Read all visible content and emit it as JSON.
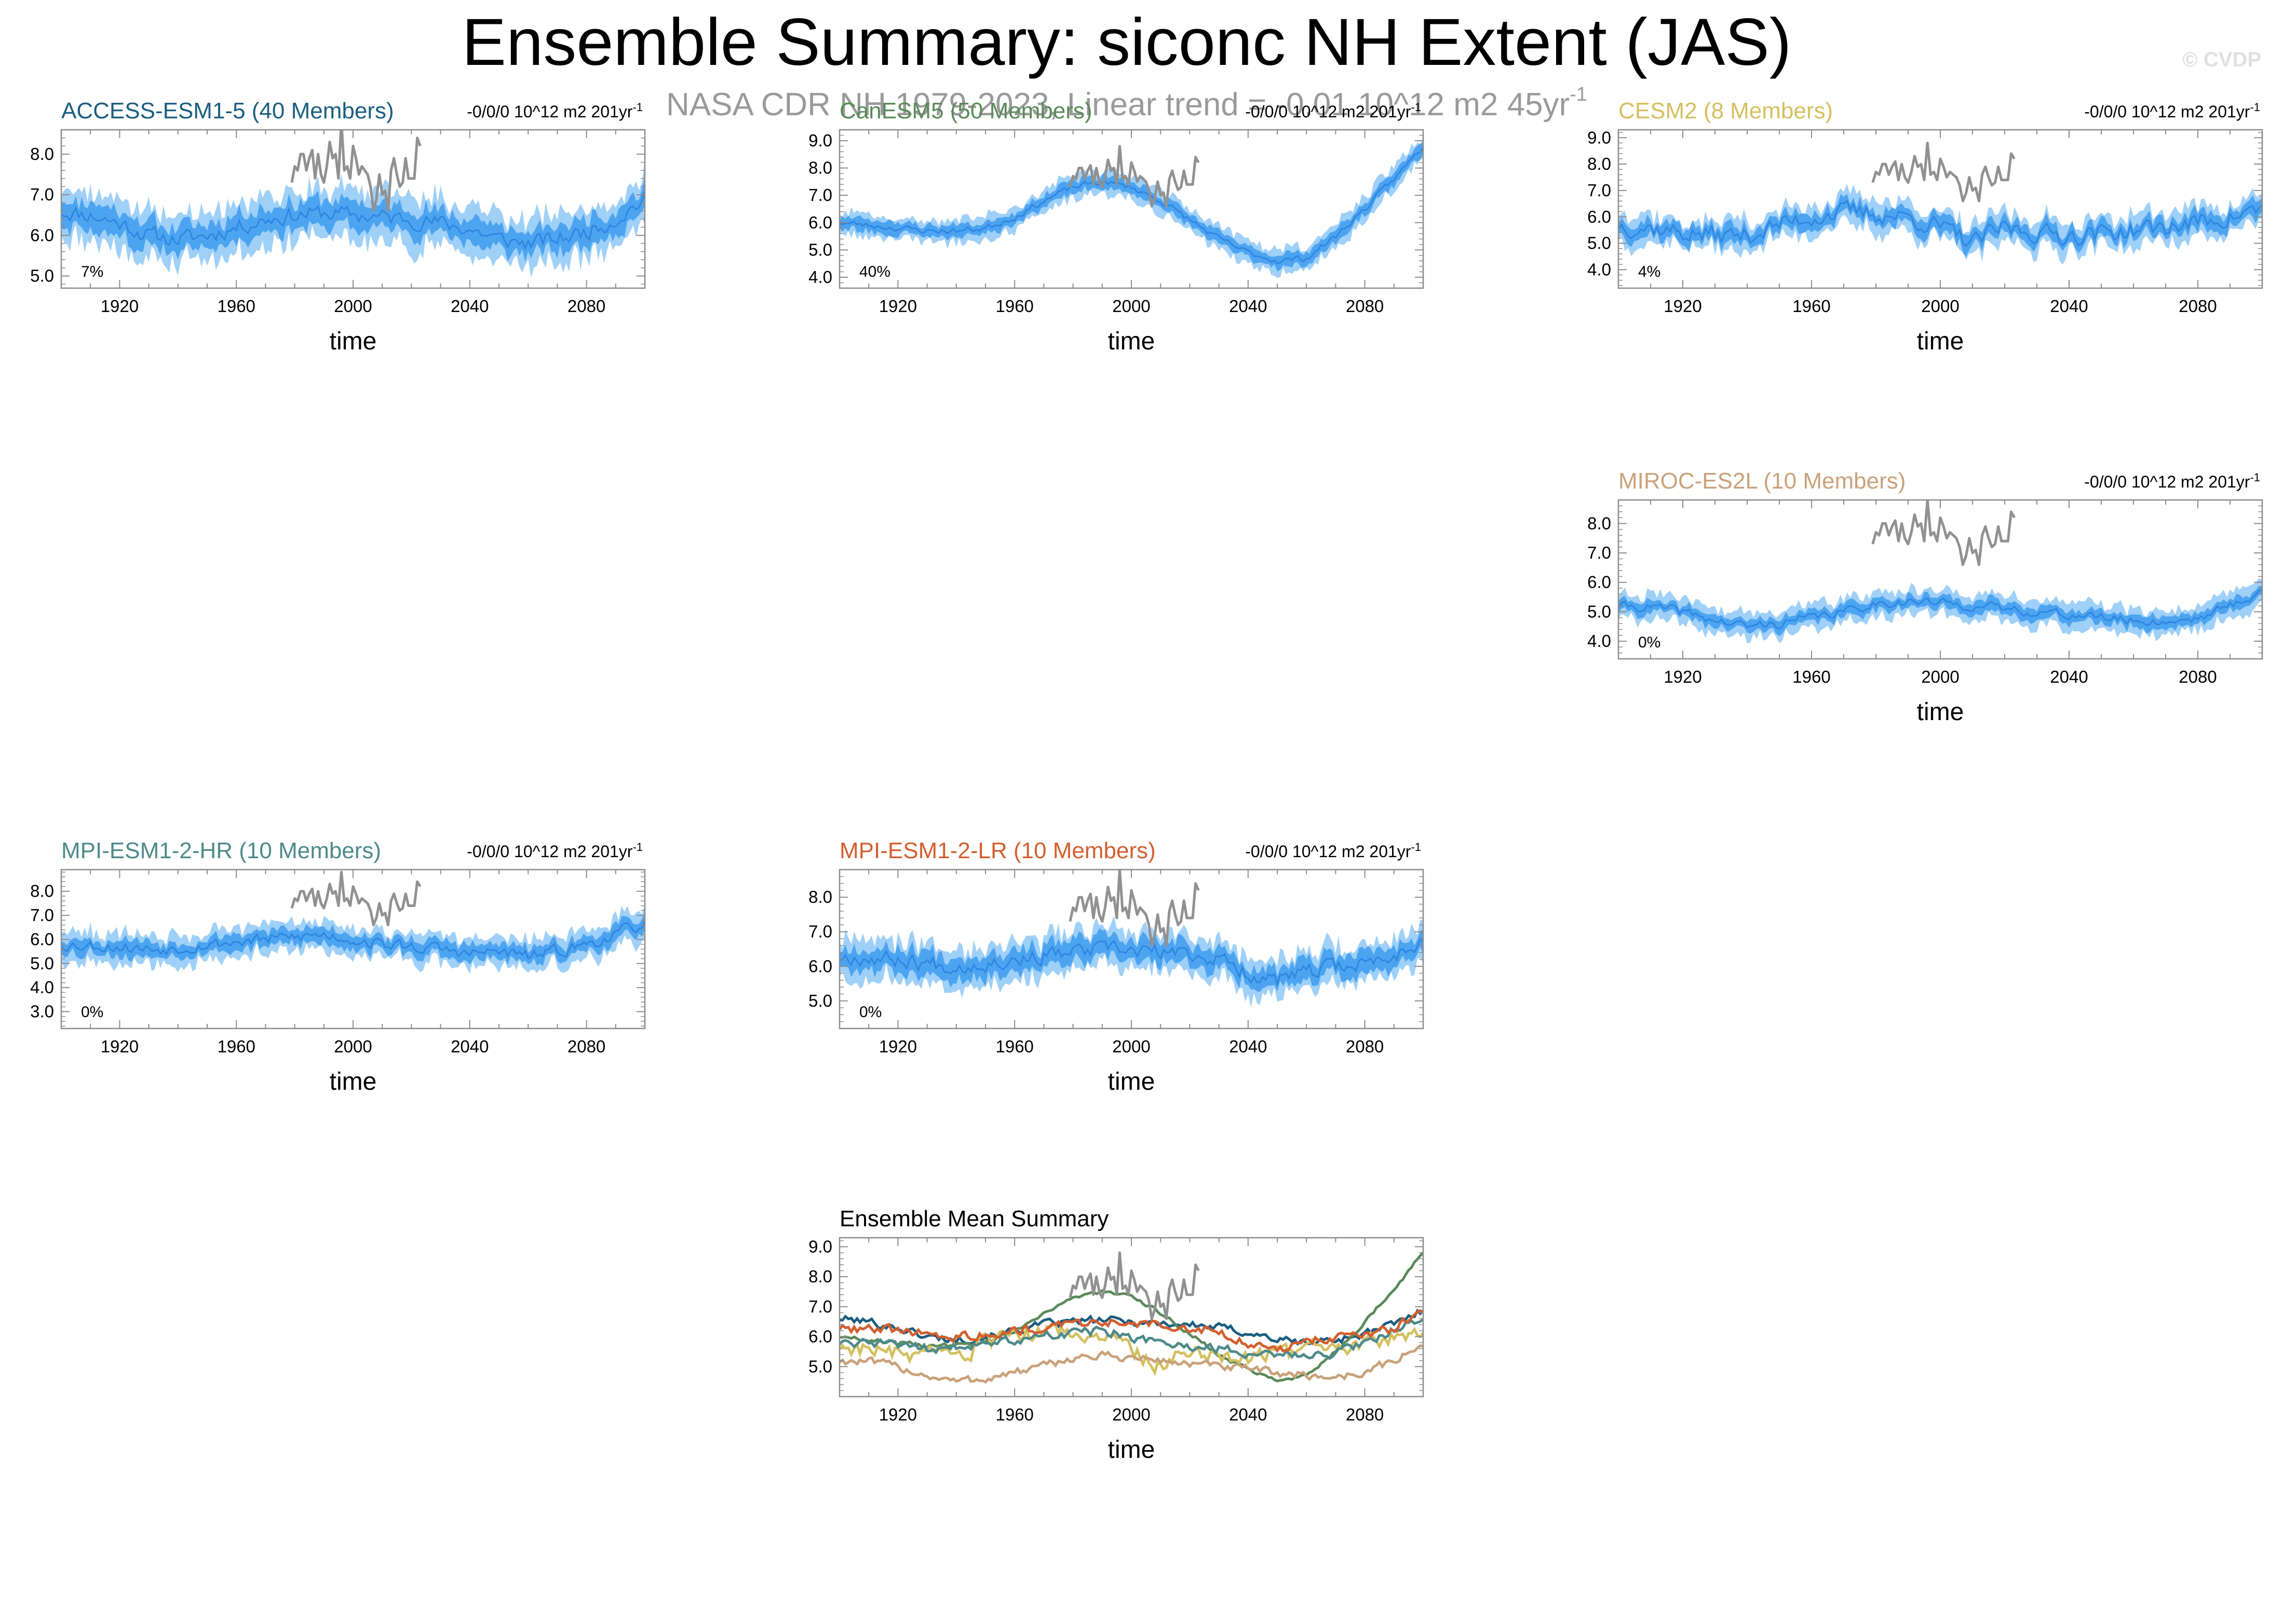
{
  "title": "Ensemble Summary: siconc NH Extent (JAS)",
  "subtitle": "NASA CDR NH 1979-2023, Linear trend = -0.01 10^12 m2 45yr",
  "subtitle_sup": "-1",
  "watermark": "© CVDP",
  "colors": {
    "band_outer": "#9fd0f8",
    "band_inner": "#3d9cf0",
    "mean_line": "#2f86e0",
    "obs": "#919191"
  },
  "chart_data": [
    {
      "type": "area",
      "id": "access",
      "title": "ACCESS-ESM1-5 (40 Members)",
      "title_color": "#1b5e80",
      "trend_text": "-0/0/0 10^12 m2 201yr",
      "trend_sup": "-1",
      "pct_label": "7%",
      "xlabel": "time",
      "xlim": [
        1900,
        2100
      ],
      "ylim": [
        4.7,
        8.6
      ],
      "yticks": [
        "5.0",
        "6.0",
        "7.0",
        "8.0"
      ],
      "xticks": [
        "1920",
        "1960",
        "2000",
        "2040",
        "2080"
      ],
      "mean_years": [
        1900,
        1910,
        1920,
        1930,
        1940,
        1950,
        1960,
        1970,
        1980,
        1990,
        2000,
        2010,
        2020,
        2030,
        2040,
        2050,
        2060,
        2070,
        2080,
        2090,
        2100
      ],
      "mean_values": [
        6.6,
        6.5,
        6.3,
        6.0,
        5.9,
        6.0,
        6.2,
        6.4,
        6.5,
        6.55,
        6.5,
        6.45,
        6.4,
        6.3,
        6.15,
        5.9,
        5.8,
        5.9,
        6.1,
        6.4,
        6.9
      ],
      "inner_halfwidth": 0.3,
      "outer_halfwidth": 0.6,
      "noise_amp": 0.18,
      "seed": 11
    },
    {
      "type": "area",
      "id": "canesm5",
      "title": "CanESM5 (50 Members)",
      "title_color": "#5a8a5a",
      "trend_text": "-0/0/0 10^12 m2 201yr",
      "trend_sup": "-1",
      "pct_label": "40%",
      "xlabel": "time",
      "xlim": [
        1900,
        2100
      ],
      "ylim": [
        3.6,
        9.4
      ],
      "yticks": [
        "4.0",
        "5.0",
        "6.0",
        "7.0",
        "8.0",
        "9.0"
      ],
      "xticks": [
        "1920",
        "1960",
        "2000",
        "2040",
        "2080"
      ],
      "mean_years": [
        1900,
        1910,
        1920,
        1930,
        1940,
        1950,
        1960,
        1970,
        1980,
        1990,
        2000,
        2010,
        2020,
        2030,
        2040,
        2050,
        2060,
        2070,
        2080,
        2090,
        2100
      ],
      "mean_values": [
        6.0,
        5.9,
        5.8,
        5.7,
        5.7,
        5.8,
        6.2,
        6.8,
        7.3,
        7.5,
        7.3,
        6.8,
        6.1,
        5.4,
        4.9,
        4.6,
        4.7,
        5.5,
        6.5,
        7.6,
        8.8
      ],
      "inner_halfwidth": 0.22,
      "outer_halfwidth": 0.42,
      "noise_amp": 0.1,
      "seed": 23
    },
    {
      "type": "area",
      "id": "cesm2",
      "title": "CESM2 (8 Members)",
      "title_color": "#d4c060",
      "trend_text": "-0/0/0 10^12 m2 201yr",
      "trend_sup": "-1",
      "pct_label": "4%",
      "xlabel": "time",
      "xlim": [
        1900,
        2100
      ],
      "ylim": [
        3.3,
        9.3
      ],
      "yticks": [
        "4.0",
        "5.0",
        "6.0",
        "7.0",
        "8.0",
        "9.0"
      ],
      "xticks": [
        "1920",
        "1960",
        "2000",
        "2040",
        "2080"
      ],
      "mean_years": [
        1900,
        1910,
        1920,
        1930,
        1940,
        1950,
        1960,
        1970,
        1980,
        1990,
        2000,
        2010,
        2020,
        2030,
        2040,
        2050,
        2060,
        2070,
        2080,
        2090,
        2100
      ],
      "mean_values": [
        5.7,
        5.6,
        5.4,
        5.3,
        5.3,
        5.7,
        6.0,
        6.2,
        6.1,
        6.0,
        5.6,
        5.0,
        5.6,
        5.4,
        5.3,
        5.4,
        5.5,
        5.6,
        5.8,
        6.0,
        6.3
      ],
      "inner_halfwidth": 0.3,
      "outer_halfwidth": 0.55,
      "noise_amp": 0.32,
      "seed": 37
    },
    {
      "type": "area",
      "id": "miroc",
      "title": "MIROC-ES2L (10 Members)",
      "title_color": "#c9a27a",
      "trend_text": "-0/0/0 10^12 m2 201yr",
      "trend_sup": "-1",
      "pct_label": "0%",
      "xlabel": "time",
      "xlim": [
        1900,
        2100
      ],
      "ylim": [
        3.4,
        8.8
      ],
      "yticks": [
        "4.0",
        "5.0",
        "6.0",
        "7.0",
        "8.0"
      ],
      "xticks": [
        "1920",
        "1960",
        "2000",
        "2040",
        "2080"
      ],
      "mean_years": [
        1900,
        1910,
        1920,
        1930,
        1940,
        1950,
        1960,
        1970,
        1980,
        1990,
        2000,
        2010,
        2020,
        2030,
        2040,
        2050,
        2060,
        2070,
        2080,
        2090,
        2100
      ],
      "mean_values": [
        5.2,
        5.15,
        5.0,
        4.7,
        4.5,
        4.6,
        4.8,
        5.0,
        5.3,
        5.35,
        5.3,
        5.2,
        5.1,
        5.0,
        4.9,
        4.8,
        4.7,
        4.65,
        4.8,
        5.2,
        5.7
      ],
      "inner_halfwidth": 0.2,
      "outer_halfwidth": 0.42,
      "noise_amp": 0.14,
      "seed": 41
    },
    {
      "type": "area",
      "id": "mpihr",
      "title": "MPI-ESM1-2-HR (10 Members)",
      "title_color": "#4e8a8a",
      "trend_text": "-0/0/0 10^12 m2 201yr",
      "trend_sup": "-1",
      "pct_label": "0%",
      "xlabel": "time",
      "xlim": [
        1900,
        2100
      ],
      "ylim": [
        2.3,
        8.9
      ],
      "yticks": [
        "3.0",
        "4.0",
        "5.0",
        "6.0",
        "7.0",
        "8.0"
      ],
      "xticks": [
        "1920",
        "1960",
        "2000",
        "2040",
        "2080"
      ],
      "mean_years": [
        1900,
        1910,
        1920,
        1930,
        1940,
        1950,
        1960,
        1970,
        1980,
        1990,
        2000,
        2010,
        2020,
        2030,
        2040,
        2050,
        2060,
        2070,
        2080,
        2090,
        2100
      ],
      "mean_values": [
        5.8,
        5.75,
        5.7,
        5.6,
        5.65,
        5.8,
        5.9,
        6.0,
        6.1,
        6.2,
        6.0,
        5.8,
        5.7,
        5.6,
        5.4,
        5.5,
        5.3,
        5.5,
        5.8,
        6.2,
        6.7
      ],
      "inner_halfwidth": 0.3,
      "outer_halfwidth": 0.6,
      "noise_amp": 0.22,
      "seed": 53
    },
    {
      "type": "area",
      "id": "mpilr",
      "title": "MPI-ESM1-2-LR (10 Members)",
      "title_color": "#d35f2f",
      "trend_text": "-0/0/0 10^12 m2 201yr",
      "trend_sup": "-1",
      "pct_label": "0%",
      "xlabel": "time",
      "xlim": [
        1900,
        2100
      ],
      "ylim": [
        4.2,
        8.8
      ],
      "yticks": [
        "5.0",
        "6.0",
        "7.0",
        "8.0"
      ],
      "xticks": [
        "1920",
        "1960",
        "2000",
        "2040",
        "2080"
      ],
      "mean_years": [
        1900,
        1910,
        1920,
        1930,
        1940,
        1950,
        1960,
        1970,
        1980,
        1990,
        2000,
        2010,
        2020,
        2030,
        2040,
        2050,
        2060,
        2070,
        2080,
        2090,
        2100
      ],
      "mean_values": [
        6.3,
        6.25,
        6.2,
        6.1,
        6.0,
        6.1,
        6.2,
        6.3,
        6.4,
        6.5,
        6.45,
        6.4,
        6.35,
        6.2,
        5.8,
        5.6,
        5.8,
        6.0,
        6.1,
        6.3,
        6.8
      ],
      "inner_halfwidth": 0.3,
      "outer_halfwidth": 0.55,
      "noise_amp": 0.2,
      "seed": 67
    },
    {
      "type": "line",
      "id": "summary",
      "title": "Ensemble Mean Summary",
      "title_color": "#000000",
      "xlabel": "time",
      "xlim": [
        1900,
        2100
      ],
      "ylim": [
        4.0,
        9.3
      ],
      "yticks": [
        "5.0",
        "6.0",
        "7.0",
        "8.0",
        "9.0"
      ],
      "xticks": [
        "1920",
        "1960",
        "2000",
        "2040",
        "2080"
      ],
      "series": [
        {
          "name": "ACCESS-ESM1-5",
          "color": "#1b5e80",
          "ref": "access",
          "noise": 0.12,
          "seed": 101
        },
        {
          "name": "CanESM5",
          "color": "#5a8a5a",
          "ref": "canesm5",
          "noise": 0.06,
          "seed": 102
        },
        {
          "name": "CESM2",
          "color": "#d4c060",
          "ref": "cesm2",
          "noise": 0.25,
          "seed": 103
        },
        {
          "name": "MIROC-ES2L",
          "color": "#c9a27a",
          "ref": "miroc",
          "noise": 0.12,
          "seed": 104
        },
        {
          "name": "MPI-ESM1-2-HR",
          "color": "#4e8a8a",
          "ref": "mpihr",
          "noise": 0.14,
          "seed": 105
        },
        {
          "name": "MPI-ESM1-2-LR",
          "color": "#d35f2f",
          "ref": "mpilr",
          "noise": 0.14,
          "seed": 106
        }
      ]
    }
  ],
  "observations": {
    "name": "NASA CDR NH 1979-2023",
    "years": [
      1979,
      1980,
      1981,
      1982,
      1983,
      1984,
      1985,
      1986,
      1987,
      1988,
      1989,
      1990,
      1991,
      1992,
      1993,
      1994,
      1995,
      1996,
      1997,
      1998,
      1999,
      2000,
      2001,
      2002,
      2003,
      2004,
      2005,
      2006,
      2007,
      2008,
      2009,
      2010,
      2011,
      2012,
      2013,
      2014,
      2015,
      2016,
      2017,
      2018,
      2019,
      2020,
      2021,
      2022,
      2023
    ],
    "values": [
      7.3,
      7.7,
      7.6,
      8.0,
      8.0,
      7.6,
      7.9,
      8.1,
      7.4,
      8.0,
      7.5,
      7.3,
      7.7,
      8.3,
      7.9,
      8.0,
      7.4,
      8.8,
      7.6,
      7.7,
      7.4,
      8.2,
      7.9,
      7.5,
      7.7,
      7.6,
      7.5,
      7.2,
      6.6,
      6.9,
      7.5,
      7.0,
      7.1,
      6.6,
      7.6,
      7.9,
      7.5,
      7.2,
      7.3,
      7.9,
      7.4,
      7.4,
      7.4,
      8.4,
      8.2
    ]
  }
}
